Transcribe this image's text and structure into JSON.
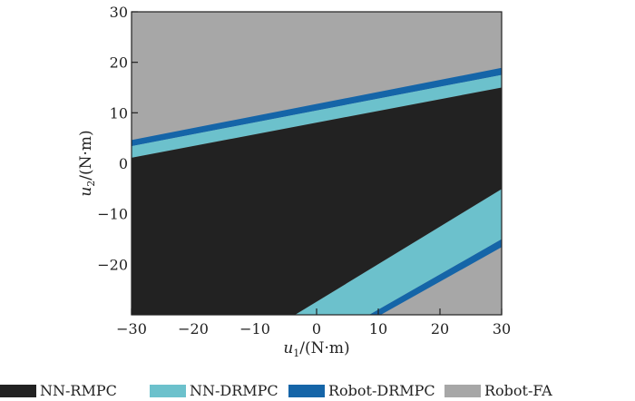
{
  "chart_data": {
    "type": "area",
    "xlabel": {
      "var": "u",
      "sub": "1",
      "unit": "/(N·m)"
    },
    "ylabel": {
      "var": "u",
      "sub": "2",
      "unit": "/(N·m)"
    },
    "xlim": [
      -30,
      30
    ],
    "ylim": [
      -30,
      30
    ],
    "xticks": [
      -30,
      -20,
      -10,
      0,
      10,
      20,
      30
    ],
    "yticks": [
      30,
      20,
      10,
      0,
      -10,
      -20
    ],
    "xtick_labels": [
      "−30",
      "−20",
      "−10",
      "0",
      "10",
      "20",
      "30"
    ],
    "ytick_labels": [
      "30",
      "20",
      "10",
      "0",
      "−10",
      "−20"
    ],
    "grid": false,
    "legend_position": "bottom",
    "series": [
      {
        "name": "Robot-FA",
        "color": "#a7a7a7",
        "polygons": [
          [
            [
              -30,
              -30
            ],
            [
              30,
              -30
            ],
            [
              30,
              30
            ],
            [
              -30,
              30
            ]
          ]
        ]
      },
      {
        "name": "Robot-DRMPC",
        "color": "#1565a8",
        "polygons": [
          [
            [
              -30,
              4.6
            ],
            [
              30,
              18.9
            ],
            [
              30,
              17.5
            ],
            [
              -30,
              3.4
            ]
          ],
          [
            [
              8.5,
              -30
            ],
            [
              30,
              -15
            ],
            [
              30,
              -16.6
            ],
            [
              10.4,
              -30
            ]
          ]
        ]
      },
      {
        "name": "NN-DRMPC",
        "color": "#6cc1cc",
        "polygons": [
          [
            [
              -30,
              3.4
            ],
            [
              30,
              17.5
            ],
            [
              30,
              15
            ],
            [
              -30,
              1.1
            ]
          ],
          [
            [
              -3.5,
              -30
            ],
            [
              30,
              -5.1
            ],
            [
              30,
              -15
            ],
            [
              8.5,
              -30
            ]
          ]
        ]
      },
      {
        "name": "NN-RMPC",
        "color": "#222222",
        "polygons": [
          [
            [
              -30,
              1.1
            ],
            [
              30,
              15
            ],
            [
              30,
              -5.1
            ],
            [
              -3.5,
              -30
            ],
            [
              -30,
              -30
            ]
          ]
        ]
      }
    ],
    "legend": [
      "NN-RMPC",
      "NN-DRMPC",
      "Robot-DRMPC",
      "Robot-FA"
    ]
  }
}
